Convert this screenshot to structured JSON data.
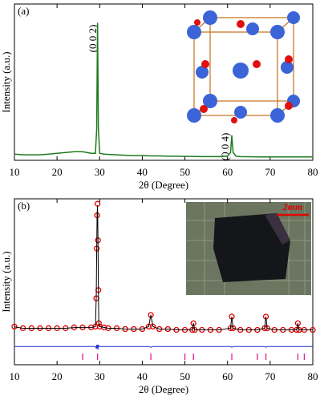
{
  "chart_data": [
    {
      "type": "line",
      "panel_label": "(a)",
      "xlabel": "2θ (Degree)",
      "ylabel": "Intensity (a.u.)",
      "annotations": [
        "(0 0 2)",
        "(0 0 4)"
      ],
      "xlim": [
        10,
        80
      ],
      "xticks": [
        10,
        20,
        30,
        40,
        50,
        60,
        70,
        80
      ],
      "ylim": [
        0,
        100
      ],
      "color": "#1e7a1e",
      "x": [
        10,
        12,
        14,
        16,
        18,
        20,
        22,
        24,
        26,
        27,
        28,
        29,
        29.3,
        29.5,
        29.7,
        30,
        31,
        32,
        34,
        36,
        38,
        40,
        42,
        44,
        46,
        48,
        50,
        52,
        54,
        56,
        58,
        59,
        60,
        60.7,
        61,
        61.3,
        62,
        63,
        65,
        68,
        70,
        72,
        74,
        76,
        78,
        80
      ],
      "values": [
        4,
        3.5,
        3.5,
        3.5,
        4,
        4.5,
        5,
        5.5,
        5.5,
        5,
        4.5,
        4.5,
        20,
        88,
        20,
        4.5,
        4,
        3.8,
        3.5,
        3.2,
        3,
        3,
        2.8,
        2.8,
        2.6,
        2.6,
        2.5,
        2.5,
        2.4,
        2.4,
        2.4,
        2.5,
        2.6,
        5,
        16,
        5,
        2.6,
        2.4,
        2.3,
        2.2,
        2.2,
        2.2,
        2.2,
        2.2,
        2.2,
        2.2
      ]
    },
    {
      "type": "refinement",
      "panel_label": "(b)",
      "xlabel": "2θ (Degree)",
      "ylabel": "Intensity (a.u.)",
      "inset_label": "2mm",
      "xlim": [
        10,
        80
      ],
      "xticks": [
        10,
        20,
        30,
        40,
        50,
        60,
        70,
        80
      ],
      "ylim": [
        0,
        100
      ],
      "x": [
        10,
        12,
        14,
        16,
        18,
        20,
        22,
        24,
        26,
        28,
        29,
        29.2,
        29.3,
        29.4,
        29.5,
        29.6,
        29.7,
        29.8,
        30,
        31,
        32,
        34,
        36,
        38,
        40,
        41.5,
        42,
        42.5,
        44,
        46,
        48,
        50,
        51.7,
        52,
        52.3,
        54,
        56,
        58,
        60.7,
        61,
        61.3,
        63,
        65,
        67,
        68.7,
        69,
        69.3,
        71,
        73,
        75,
        76.2,
        76.5,
        76.8,
        78,
        80
      ],
      "series": [
        {
          "marker": "circle",
          "color": "#e00000",
          "values": [
            23,
            22,
            22,
            22,
            22,
            22,
            22,
            22.5,
            22.5,
            22.5,
            23,
            40,
            70,
            90,
            97,
            75,
            45,
            25,
            23,
            22.5,
            22,
            22,
            21.5,
            21.5,
            21.5,
            23,
            30,
            23,
            21.5,
            21.5,
            21,
            21,
            21,
            25,
            21,
            21,
            21,
            21,
            22,
            29,
            22,
            21,
            21,
            21,
            22,
            29,
            22,
            21,
            21,
            21,
            21,
            25,
            21,
            21,
            21
          ]
        },
        {
          "marker": "line",
          "color": "#000000",
          "values": [
            22.8,
            22,
            22,
            22,
            22,
            22,
            22,
            22.4,
            22.4,
            22.4,
            23,
            41,
            69,
            91,
            96,
            76,
            44,
            25,
            23,
            22.5,
            22,
            22,
            21.5,
            21.5,
            21.5,
            23,
            30,
            23,
            21.5,
            21.5,
            21,
            21,
            21,
            25,
            21,
            21,
            21,
            21,
            22,
            29,
            22,
            21,
            21,
            21,
            22,
            29,
            22,
            21,
            21,
            21,
            21,
            25,
            21,
            21,
            21
          ]
        },
        {
          "marker": "line",
          "color": "#2030d0",
          "values": [
            11,
            11,
            11,
            11,
            11,
            11,
            11,
            11,
            11,
            11,
            11,
            10,
            12,
            10,
            12,
            9,
            12,
            11,
            11,
            11,
            11,
            11,
            11,
            11,
            11,
            11,
            10.5,
            11,
            11,
            11,
            11,
            11,
            11,
            11,
            11,
            11,
            11,
            11,
            11,
            10.5,
            11,
            11,
            11,
            11,
            11,
            10.5,
            11,
            11,
            11,
            11,
            11,
            11,
            11,
            11,
            11
          ]
        }
      ],
      "bragg_color": "#e0208a",
      "bragg_x": [
        26,
        29.5,
        42,
        50,
        52,
        61,
        67,
        69,
        76.5,
        78
      ]
    }
  ]
}
